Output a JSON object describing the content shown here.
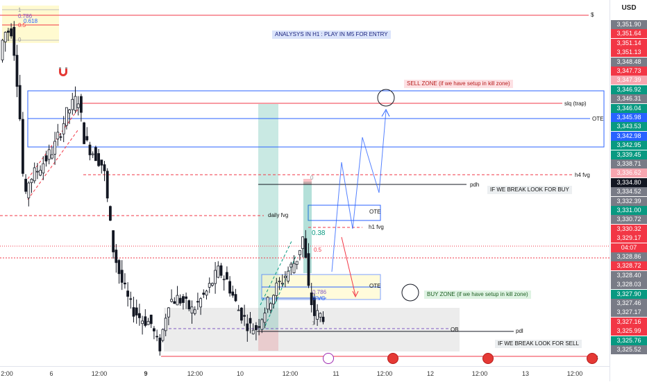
{
  "chart_data": {
    "type": "candlestick",
    "currency_label": "USD",
    "y_range": [
      3325.2,
      3352.4
    ],
    "x_ticks": [
      "2:00",
      "6",
      "12:00",
      "9",
      "12:00",
      "10",
      "12:00",
      "11",
      "12:00",
      "12",
      "12:00",
      "13",
      "12:00"
    ],
    "price_labels": [
      {
        "text": "3,351.90",
        "color": "#787b86"
      },
      {
        "text": "3,351.64",
        "color": "#f23645"
      },
      {
        "text": "3,351.14",
        "color": "#f23645"
      },
      {
        "text": "3,351.13",
        "color": "#f23645"
      },
      {
        "text": "3,348.48",
        "color": "#787b86"
      },
      {
        "text": "3,347.73",
        "color": "#f23645"
      },
      {
        "text": "3,347.39",
        "color": "#f7a6b0"
      },
      {
        "text": "3,346.92",
        "color": "#089981"
      },
      {
        "text": "3,346.31",
        "color": "#787b86"
      },
      {
        "text": "3,346.04",
        "color": "#089981"
      },
      {
        "text": "3,345.98",
        "color": "#2962ff"
      },
      {
        "text": "3,343.53",
        "color": "#089981"
      },
      {
        "text": "3,342.98",
        "color": "#2962ff"
      },
      {
        "text": "3,342.95",
        "color": "#089981"
      },
      {
        "text": "3,339.45",
        "color": "#089981"
      },
      {
        "text": "3,338.71",
        "color": "#787b86"
      },
      {
        "text": "3,336.62",
        "color": "#f7a6b0"
      },
      {
        "text": "3,334.80",
        "color": "#131722"
      },
      {
        "text": "3,334.52",
        "color": "#787b86"
      },
      {
        "text": "3,332.39",
        "color": "#787b86"
      },
      {
        "text": "3,331.00",
        "color": "#089981"
      },
      {
        "text": "3,330.72",
        "color": "#787b86"
      },
      {
        "text": "3,330.32",
        "color": "#f23645"
      },
      {
        "text": "3,329.17",
        "color": "#f23645"
      },
      {
        "text": "04:07",
        "color": "#f23645"
      },
      {
        "text": "3,328.86",
        "color": "#787b86"
      },
      {
        "text": "3,328.72",
        "color": "#f23645"
      },
      {
        "text": "3,328.40",
        "color": "#787b86"
      },
      {
        "text": "3,328.03",
        "color": "#787b86"
      },
      {
        "text": "3,327.90",
        "color": "#089981"
      },
      {
        "text": "3,327.46",
        "color": "#787b86"
      },
      {
        "text": "3,327.17",
        "color": "#787b86"
      },
      {
        "text": "3,327.16",
        "color": "#f23645"
      },
      {
        "text": "3,325.99",
        "color": "#f23645"
      },
      {
        "text": "3,325.76",
        "color": "#089981"
      },
      {
        "text": "3,325.52",
        "color": "#787b86"
      }
    ],
    "annotations": {
      "title": "ANALYSYS IN H1 : PLAY IN M5 FOR ENTRY",
      "sell_zone": "SELL ZONE (if we have setup in kill zone)",
      "buy_zone": "BUY ZONE (if we have setup in kill zone)",
      "break_buy": "IF WE BREAK LOOK FOR BUY",
      "break_sell": "IF WE BREAK LOOK FOR SELL",
      "slq": "slq (trap)",
      "ote_upper": "OTE",
      "ote_mid": "OTE",
      "ote_low": "OTE",
      "h4fvg": "h4 fvg",
      "pdh": "pdh",
      "pdl": "pdl",
      "daily_fvg": "daily fvg",
      "h1fvg": "h1 fvg",
      "ifvg": "IFVG",
      "ob": "OB",
      "fib_0786_low": "0.786",
      "fib_038": "0.38",
      "fib_05": "0.5",
      "fib_0": "0",
      "fib_1": "1",
      "fib_top_1": "1",
      "fib_top_0786": "0.786",
      "fib_top_0618": "0.618",
      "fib_top_05": "0.5",
      "fib_top_0": "0",
      "dollar_top": "$",
      "dollar_bottom": "$"
    },
    "colors": {
      "up": "#ffffff",
      "down": "#131722",
      "zone_blue": "#2962ff",
      "zone_red": "#f23645",
      "fvg_green": "#089981"
    }
  }
}
